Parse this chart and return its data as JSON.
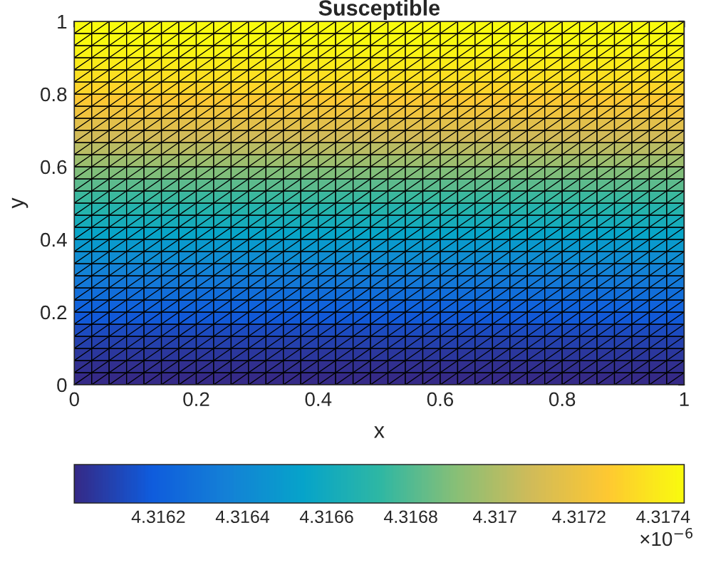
{
  "chart_data": {
    "type": "heatmap",
    "title": "Susceptible",
    "xlabel": "x",
    "ylabel": "y",
    "xlim": [
      0,
      1
    ],
    "ylim": [
      0,
      1
    ],
    "xticks": [
      0,
      0.2,
      0.4,
      0.6,
      0.8,
      1
    ],
    "yticks": [
      0,
      0.2,
      0.4,
      0.6,
      0.8,
      1
    ],
    "clim": [
      4.316,
      4.31745
    ],
    "cticks": [
      4.3162,
      4.3164,
      4.3166,
      4.3168,
      4.317,
      4.3172,
      4.3174
    ],
    "annotations": [
      "×10$^{−6}$"
    ],
    "cells": [
      [
        4.31745,
        4.31745,
        4.31745,
        4.31745,
        4.31745,
        4.31745,
        4.31745,
        4.31745,
        4.31745,
        4.31745,
        4.31745,
        4.31745,
        4.31745,
        4.31745,
        4.31745,
        4.31745,
        4.31745,
        4.31745,
        4.31745,
        4.31745,
        4.31745,
        4.31745,
        4.31745,
        4.31745,
        4.31745,
        4.31745,
        4.31745,
        4.31745,
        4.31745,
        4.31745,
        4.31745,
        4.31745,
        4.31745,
        4.31745,
        4.31745
      ],
      [
        4.31744,
        4.31744,
        4.31744,
        4.31744,
        4.31744,
        4.31744,
        4.31744,
        4.31744,
        4.31744,
        4.31744,
        4.31744,
        4.31744,
        4.31744,
        4.31744,
        4.31744,
        4.31744,
        4.31744,
        4.31744,
        4.31744,
        4.31744,
        4.31744,
        4.31744,
        4.31744,
        4.31744,
        4.31744,
        4.31744,
        4.31744,
        4.31744,
        4.31744,
        4.31744,
        4.31744,
        4.31744,
        4.31744,
        4.31744,
        4.31744
      ],
      [
        4.31742,
        4.31742,
        4.31742,
        4.31742,
        4.31742,
        4.31742,
        4.31742,
        4.31742,
        4.31742,
        4.31742,
        4.31742,
        4.31742,
        4.31742,
        4.31742,
        4.31742,
        4.31742,
        4.31742,
        4.31742,
        4.31742,
        4.31742,
        4.31742,
        4.31742,
        4.31742,
        4.31742,
        4.31742,
        4.31742,
        4.31742,
        4.31742,
        4.31742,
        4.31742,
        4.31742,
        4.31742,
        4.31742,
        4.31742,
        4.31742
      ],
      [
        4.31739,
        4.31739,
        4.31739,
        4.31739,
        4.31739,
        4.31739,
        4.31739,
        4.31739,
        4.31739,
        4.31739,
        4.31739,
        4.31739,
        4.31739,
        4.31739,
        4.31739,
        4.31739,
        4.31739,
        4.31739,
        4.31739,
        4.31739,
        4.31739,
        4.31739,
        4.31739,
        4.31739,
        4.31739,
        4.31739,
        4.31739,
        4.31739,
        4.31739,
        4.31739,
        4.31739,
        4.31739,
        4.31739,
        4.31739,
        4.31739
      ],
      [
        4.31735,
        4.31735,
        4.31735,
        4.31735,
        4.31735,
        4.31735,
        4.31735,
        4.31735,
        4.31735,
        4.31735,
        4.31735,
        4.31735,
        4.31735,
        4.31735,
        4.31735,
        4.31735,
        4.31735,
        4.31735,
        4.31735,
        4.31735,
        4.31735,
        4.31735,
        4.31735,
        4.31735,
        4.31735,
        4.31735,
        4.31735,
        4.31735,
        4.31735,
        4.31735,
        4.31735,
        4.31735,
        4.31735,
        4.31735,
        4.31735
      ],
      [
        4.31731,
        4.31731,
        4.31731,
        4.31731,
        4.31731,
        4.31731,
        4.31731,
        4.31731,
        4.31731,
        4.31731,
        4.31731,
        4.31731,
        4.31731,
        4.31731,
        4.31731,
        4.31731,
        4.31731,
        4.31731,
        4.31731,
        4.31731,
        4.31731,
        4.31731,
        4.31731,
        4.31731,
        4.31731,
        4.31731,
        4.31731,
        4.31731,
        4.31731,
        4.31731,
        4.31731,
        4.31731,
        4.31731,
        4.31731,
        4.31731
      ],
      [
        4.31726,
        4.31726,
        4.31726,
        4.31726,
        4.31726,
        4.31726,
        4.31726,
        4.31726,
        4.31726,
        4.31726,
        4.31726,
        4.31726,
        4.31726,
        4.31726,
        4.31726,
        4.31726,
        4.31726,
        4.31726,
        4.31726,
        4.31726,
        4.31726,
        4.31726,
        4.31726,
        4.31726,
        4.31726,
        4.31726,
        4.31726,
        4.31726,
        4.31726,
        4.31726,
        4.31726,
        4.31726,
        4.31726,
        4.31726,
        4.31726
      ],
      [
        4.31721,
        4.31721,
        4.31721,
        4.31721,
        4.31721,
        4.31721,
        4.31721,
        4.31721,
        4.31721,
        4.31721,
        4.31721,
        4.31721,
        4.31721,
        4.31721,
        4.31721,
        4.31721,
        4.31721,
        4.31721,
        4.31721,
        4.31721,
        4.31721,
        4.31721,
        4.31721,
        4.31721,
        4.31721,
        4.31721,
        4.31721,
        4.31721,
        4.31721,
        4.31721,
        4.31721,
        4.31721,
        4.31721,
        4.31721,
        4.31721
      ],
      [
        4.31715,
        4.31715,
        4.31715,
        4.31715,
        4.31715,
        4.31715,
        4.31715,
        4.31715,
        4.31715,
        4.31715,
        4.31715,
        4.31715,
        4.31715,
        4.31715,
        4.31715,
        4.31715,
        4.31715,
        4.31715,
        4.31715,
        4.31715,
        4.31715,
        4.31715,
        4.31715,
        4.31715,
        4.31715,
        4.31715,
        4.31715,
        4.31715,
        4.31715,
        4.31715,
        4.31715,
        4.31715,
        4.31715,
        4.31715,
        4.31715
      ],
      [
        4.31709,
        4.31709,
        4.31709,
        4.31709,
        4.31709,
        4.31709,
        4.31709,
        4.31709,
        4.31709,
        4.31709,
        4.31709,
        4.31709,
        4.31709,
        4.31709,
        4.31709,
        4.31709,
        4.31709,
        4.31709,
        4.31709,
        4.31709,
        4.31709,
        4.31709,
        4.31709,
        4.31709,
        4.31709,
        4.31709,
        4.31709,
        4.31709,
        4.31709,
        4.31709,
        4.31709,
        4.31709,
        4.31709,
        4.31709,
        4.31709
      ],
      [
        4.31703,
        4.31703,
        4.31703,
        4.31703,
        4.31703,
        4.31703,
        4.31703,
        4.31703,
        4.31703,
        4.31703,
        4.31703,
        4.31703,
        4.31703,
        4.31703,
        4.31703,
        4.31703,
        4.31703,
        4.31703,
        4.31703,
        4.31703,
        4.31703,
        4.31703,
        4.31703,
        4.31703,
        4.31703,
        4.31703,
        4.31703,
        4.31703,
        4.31703,
        4.31703,
        4.31703,
        4.31703,
        4.31703,
        4.31703,
        4.31703
      ],
      [
        4.31696,
        4.31696,
        4.31696,
        4.31696,
        4.31696,
        4.31696,
        4.31696,
        4.31696,
        4.31696,
        4.31696,
        4.31696,
        4.31696,
        4.31696,
        4.31696,
        4.31696,
        4.31696,
        4.31696,
        4.31696,
        4.31696,
        4.31696,
        4.31696,
        4.31696,
        4.31696,
        4.31696,
        4.31696,
        4.31696,
        4.31696,
        4.31696,
        4.31696,
        4.31696,
        4.31696,
        4.31696,
        4.31696,
        4.31696,
        4.31696
      ],
      [
        4.31689,
        4.31689,
        4.31689,
        4.31689,
        4.31689,
        4.31689,
        4.31689,
        4.31689,
        4.31689,
        4.31689,
        4.31689,
        4.31689,
        4.31689,
        4.31689,
        4.31689,
        4.31689,
        4.31689,
        4.31689,
        4.31689,
        4.31689,
        4.31689,
        4.31689,
        4.31689,
        4.31689,
        4.31689,
        4.31689,
        4.31689,
        4.31689,
        4.31689,
        4.31689,
        4.31689,
        4.31689,
        4.31689,
        4.31689,
        4.31689
      ],
      [
        4.31682,
        4.31682,
        4.31682,
        4.31682,
        4.31682,
        4.31682,
        4.31682,
        4.31682,
        4.31682,
        4.31682,
        4.31682,
        4.31682,
        4.31682,
        4.31682,
        4.31682,
        4.31682,
        4.31682,
        4.31682,
        4.31682,
        4.31682,
        4.31682,
        4.31682,
        4.31682,
        4.31682,
        4.31682,
        4.31682,
        4.31682,
        4.31682,
        4.31682,
        4.31682,
        4.31682,
        4.31682,
        4.31682,
        4.31682,
        4.31682
      ],
      [
        4.31675,
        4.31675,
        4.31675,
        4.31675,
        4.31675,
        4.31675,
        4.31675,
        4.31675,
        4.31675,
        4.31675,
        4.31675,
        4.31675,
        4.31675,
        4.31675,
        4.31675,
        4.31675,
        4.31675,
        4.31675,
        4.31675,
        4.31675,
        4.31675,
        4.31675,
        4.31675,
        4.31675,
        4.31675,
        4.31675,
        4.31675,
        4.31675,
        4.31675,
        4.31675,
        4.31675,
        4.31675,
        4.31675,
        4.31675,
        4.31675
      ],
      [
        4.31668,
        4.31668,
        4.31668,
        4.31668,
        4.31668,
        4.31668,
        4.31668,
        4.31668,
        4.31668,
        4.31668,
        4.31668,
        4.31668,
        4.31668,
        4.31668,
        4.31668,
        4.31668,
        4.31668,
        4.31668,
        4.31668,
        4.31668,
        4.31668,
        4.31668,
        4.31668,
        4.31668,
        4.31668,
        4.31668,
        4.31668,
        4.31668,
        4.31668,
        4.31668,
        4.31668,
        4.31668,
        4.31668,
        4.31668,
        4.31668
      ],
      [
        4.31662,
        4.31662,
        4.31662,
        4.31662,
        4.31662,
        4.31662,
        4.31662,
        4.31662,
        4.31662,
        4.31662,
        4.31662,
        4.31662,
        4.31662,
        4.31662,
        4.31662,
        4.31662,
        4.31662,
        4.31662,
        4.31662,
        4.31662,
        4.31662,
        4.31662,
        4.31662,
        4.31662,
        4.31662,
        4.31662,
        4.31662,
        4.31662,
        4.31662,
        4.31662,
        4.31662,
        4.31662,
        4.31662,
        4.31662,
        4.31662
      ],
      [
        4.31655,
        4.31655,
        4.31655,
        4.31655,
        4.31655,
        4.31655,
        4.31655,
        4.31655,
        4.31655,
        4.31655,
        4.31655,
        4.31655,
        4.31655,
        4.31655,
        4.31655,
        4.31655,
        4.31655,
        4.31655,
        4.31655,
        4.31655,
        4.31655,
        4.31655,
        4.31655,
        4.31655,
        4.31655,
        4.31655,
        4.31655,
        4.31655,
        4.31655,
        4.31655,
        4.31655,
        4.31655,
        4.31655,
        4.31655,
        4.31655
      ],
      [
        4.31649,
        4.31649,
        4.31649,
        4.31649,
        4.31649,
        4.31649,
        4.31649,
        4.31649,
        4.31649,
        4.31649,
        4.31649,
        4.31649,
        4.31649,
        4.31649,
        4.31649,
        4.31649,
        4.31649,
        4.31649,
        4.31649,
        4.31649,
        4.31649,
        4.31649,
        4.31649,
        4.31649,
        4.31649,
        4.31649,
        4.31649,
        4.31649,
        4.31649,
        4.31649,
        4.31649,
        4.31649,
        4.31649,
        4.31649,
        4.31649
      ],
      [
        4.31643,
        4.31643,
        4.31643,
        4.31643,
        4.31643,
        4.31643,
        4.31643,
        4.31643,
        4.31643,
        4.31643,
        4.31643,
        4.31643,
        4.31643,
        4.31643,
        4.31643,
        4.31643,
        4.31643,
        4.31643,
        4.31643,
        4.31643,
        4.31643,
        4.31643,
        4.31643,
        4.31643,
        4.31643,
        4.31643,
        4.31643,
        4.31643,
        4.31643,
        4.31643,
        4.31643,
        4.31643,
        4.31643,
        4.31643,
        4.31643
      ],
      [
        4.31637,
        4.31637,
        4.31637,
        4.31637,
        4.31637,
        4.31637,
        4.31637,
        4.31637,
        4.31637,
        4.31637,
        4.31637,
        4.31637,
        4.31637,
        4.31637,
        4.31637,
        4.31637,
        4.31637,
        4.31637,
        4.31637,
        4.31637,
        4.31637,
        4.31637,
        4.31637,
        4.31637,
        4.31637,
        4.31637,
        4.31637,
        4.31637,
        4.31637,
        4.31637,
        4.31637,
        4.31637,
        4.31637,
        4.31637,
        4.31637
      ],
      [
        4.31632,
        4.31632,
        4.31632,
        4.31632,
        4.31632,
        4.31632,
        4.31632,
        4.31632,
        4.31632,
        4.31632,
        4.31632,
        4.31632,
        4.31632,
        4.31632,
        4.31632,
        4.31632,
        4.31632,
        4.31632,
        4.31632,
        4.31632,
        4.31632,
        4.31632,
        4.31632,
        4.31632,
        4.31632,
        4.31632,
        4.31632,
        4.31632,
        4.31632,
        4.31632,
        4.31632,
        4.31632,
        4.31632,
        4.31632,
        4.31632
      ],
      [
        4.31627,
        4.31627,
        4.31627,
        4.31627,
        4.31627,
        4.31627,
        4.31627,
        4.31627,
        4.31627,
        4.31627,
        4.31627,
        4.31627,
        4.31627,
        4.31627,
        4.31627,
        4.31627,
        4.31627,
        4.31627,
        4.31627,
        4.31627,
        4.31627,
        4.31627,
        4.31627,
        4.31627,
        4.31627,
        4.31627,
        4.31627,
        4.31627,
        4.31627,
        4.31627,
        4.31627,
        4.31627,
        4.31627,
        4.31627,
        4.31627
      ],
      [
        4.31622,
        4.31622,
        4.31622,
        4.31622,
        4.31622,
        4.31622,
        4.31622,
        4.31622,
        4.31622,
        4.31622,
        4.31622,
        4.31622,
        4.31622,
        4.31622,
        4.31622,
        4.31622,
        4.31622,
        4.31622,
        4.31622,
        4.31622,
        4.31622,
        4.31622,
        4.31622,
        4.31622,
        4.31622,
        4.31622,
        4.31622,
        4.31622,
        4.31622,
        4.31622,
        4.31622,
        4.31622,
        4.31622,
        4.31622,
        4.31622
      ],
      [
        4.31617,
        4.31617,
        4.31617,
        4.31617,
        4.31617,
        4.31617,
        4.31617,
        4.31617,
        4.31617,
        4.31617,
        4.31617,
        4.31617,
        4.31617,
        4.31617,
        4.31617,
        4.31617,
        4.31617,
        4.31617,
        4.31617,
        4.31617,
        4.31617,
        4.31617,
        4.31617,
        4.31617,
        4.31617,
        4.31617,
        4.31617,
        4.31617,
        4.31617,
        4.31617,
        4.31617,
        4.31617,
        4.31617,
        4.31617,
        4.31617
      ],
      [
        4.31612,
        4.31612,
        4.31612,
        4.31612,
        4.31612,
        4.31612,
        4.31612,
        4.31612,
        4.31612,
        4.31612,
        4.31612,
        4.31612,
        4.31612,
        4.31612,
        4.31612,
        4.31612,
        4.31612,
        4.31612,
        4.31612,
        4.31612,
        4.31612,
        4.31612,
        4.31612,
        4.31612,
        4.31612,
        4.31612,
        4.31612,
        4.31612,
        4.31612,
        4.31612,
        4.31612,
        4.31612,
        4.31612,
        4.31612,
        4.31612
      ],
      [
        4.31608,
        4.31608,
        4.31608,
        4.31608,
        4.31608,
        4.31608,
        4.31608,
        4.31608,
        4.31608,
        4.31608,
        4.31608,
        4.31608,
        4.31608,
        4.31608,
        4.31608,
        4.31608,
        4.31608,
        4.31608,
        4.31608,
        4.31608,
        4.31608,
        4.31608,
        4.31608,
        4.31608,
        4.31608,
        4.31608,
        4.31608,
        4.31608,
        4.31608,
        4.31608,
        4.31608,
        4.31608,
        4.31608,
        4.31608,
        4.31608
      ],
      [
        4.31605,
        4.31605,
        4.31605,
        4.31605,
        4.31605,
        4.31605,
        4.31605,
        4.31605,
        4.31605,
        4.31605,
        4.31605,
        4.31605,
        4.31605,
        4.31605,
        4.31605,
        4.31605,
        4.31605,
        4.31605,
        4.31605,
        4.31605,
        4.31605,
        4.31605,
        4.31605,
        4.31605,
        4.31605,
        4.31605,
        4.31605,
        4.31605,
        4.31605,
        4.31605,
        4.31605,
        4.31605,
        4.31605,
        4.31605,
        4.31605
      ],
      [
        4.31602,
        4.31602,
        4.31602,
        4.31602,
        4.31602,
        4.31602,
        4.31602,
        4.31602,
        4.31602,
        4.31602,
        4.31602,
        4.31602,
        4.31602,
        4.31602,
        4.31602,
        4.31602,
        4.31602,
        4.31602,
        4.31602,
        4.31602,
        4.31602,
        4.31602,
        4.31602,
        4.31602,
        4.31602,
        4.31602,
        4.31602,
        4.31602,
        4.31602,
        4.31602,
        4.31602,
        4.31602,
        4.31602,
        4.31602,
        4.31602
      ],
      [
        4.316,
        4.316,
        4.316,
        4.316,
        4.316,
        4.316,
        4.316,
        4.316,
        4.316,
        4.316,
        4.316,
        4.316,
        4.316,
        4.316,
        4.316,
        4.316,
        4.316,
        4.316,
        4.316,
        4.316,
        4.316,
        4.316,
        4.316,
        4.316,
        4.316,
        4.316,
        4.316,
        4.316,
        4.316,
        4.316,
        4.316,
        4.316,
        4.316,
        4.316,
        4.316
      ]
    ]
  }
}
